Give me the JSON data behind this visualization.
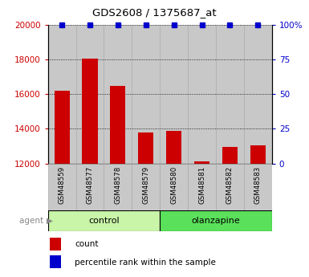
{
  "title": "GDS2608 / 1375687_at",
  "samples": [
    "GSM48559",
    "GSM48577",
    "GSM48578",
    "GSM48579",
    "GSM48580",
    "GSM48581",
    "GSM48582",
    "GSM48583"
  ],
  "counts": [
    16200,
    18050,
    16500,
    13800,
    13900,
    12100,
    12950,
    13050
  ],
  "percentiles": [
    100,
    100,
    100,
    100,
    100,
    100,
    100,
    100
  ],
  "groups": [
    {
      "label": "control",
      "start": 0,
      "end": 4,
      "color": "#c8f5a8"
    },
    {
      "label": "olanzapine",
      "start": 4,
      "end": 8,
      "color": "#5ae05a"
    }
  ],
  "ymin": 12000,
  "ymax": 20000,
  "yticks": [
    12000,
    14000,
    16000,
    18000,
    20000
  ],
  "y2ticks": [
    0,
    25,
    50,
    75,
    100
  ],
  "y2labels": [
    "0",
    "25",
    "50",
    "75",
    "100%"
  ],
  "bar_color": "#cc0000",
  "percentile_color": "#0000cc",
  "bar_width": 0.55,
  "group_label": "agent",
  "legend_count": "count",
  "legend_percentile": "percentile rank within the sample",
  "tick_label_color_left": "#cc0000",
  "tick_label_color_right": "#0000cc",
  "bg_bar_color": "#c8c8c8",
  "col_sep_color": "#aaaaaa"
}
